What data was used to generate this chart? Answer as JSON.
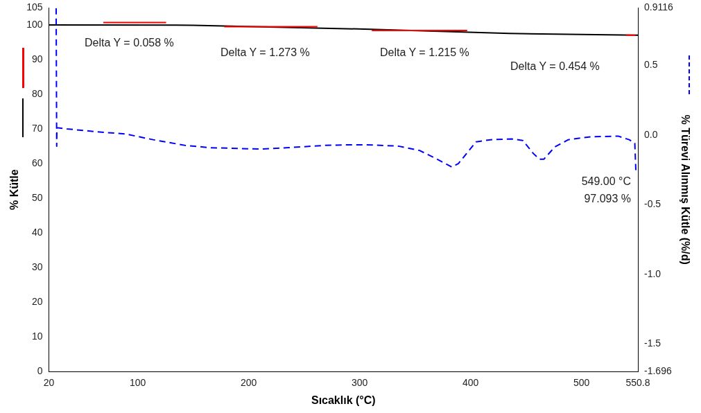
{
  "chart_data": {
    "type": "line",
    "xlabel": "Sıcaklık (°C)",
    "ylabel": "% Kütle",
    "y2label": "% Türevi Alınmış Kütle (%/d)",
    "xlim": [
      20,
      550.8
    ],
    "xticks": [
      20,
      100,
      200,
      300,
      400,
      500,
      550.8
    ],
    "ylim": [
      0,
      105
    ],
    "yticks": [
      0,
      10,
      20,
      30,
      40,
      50,
      60,
      70,
      80,
      90,
      100,
      105
    ],
    "y2lim": [
      -1.696,
      0.9116
    ],
    "y2ticks": [
      0.9116,
      0.5,
      {
        "value": 0,
        "label": "0.0"
      },
      -0.5,
      {
        "value": -1,
        "label": "-1.0"
      },
      -1.5,
      -1.696
    ],
    "grid": false,
    "legend": false,
    "marker": "none",
    "series": [
      {
        "color": "#000000",
        "x": [
          20,
          150,
          315,
          435,
          549,
          550.8
        ],
        "values": [
          100.1,
          100.0,
          98.8,
          97.6,
          97.1,
          97.1
        ]
      },
      {
        "color": "#ff0000",
        "x": [
          69,
          125.6,
          126,
          178,
          262,
          263,
          311,
          397,
          398,
          540,
          548.6
        ],
        "values": [
          100.8,
          100.8,
          null,
          99.6,
          99.6,
          null,
          98.5,
          98.5,
          null,
          97.1,
          97.1
        ]
      },
      {
        "color": "#0000ff",
        "axis": "y2",
        "line_style": "dashed",
        "x": [
          26.5,
          27,
          27.2,
          36,
          63,
          88.5,
          114,
          143,
          165,
          210,
          236,
          268,
          293,
          306,
          335,
          354,
          370,
          383,
          389,
          405,
          418,
          437,
          447,
          456.5,
          462,
          466,
          476,
          488,
          508,
          533,
          543,
          548,
          549
        ],
        "values": [
          0.91,
          -0.08,
          0.053,
          0.044,
          0.023,
          0.008,
          -0.034,
          -0.075,
          -0.091,
          -0.101,
          -0.091,
          -0.075,
          -0.07,
          -0.07,
          -0.08,
          -0.111,
          -0.174,
          -0.23,
          -0.205,
          -0.049,
          -0.034,
          -0.028,
          -0.039,
          -0.132,
          -0.174,
          -0.174,
          -0.085,
          -0.034,
          -0.013,
          -0.008,
          -0.034,
          -0.06,
          -0.27
        ]
      }
    ],
    "annotations": [
      "Delta Y = 0.058 %",
      "Delta Y = 1.273 %",
      "Delta Y = 1.215 %",
      "Delta Y = 0.454 %",
      "549.00 °C\n97.093 %"
    ]
  }
}
